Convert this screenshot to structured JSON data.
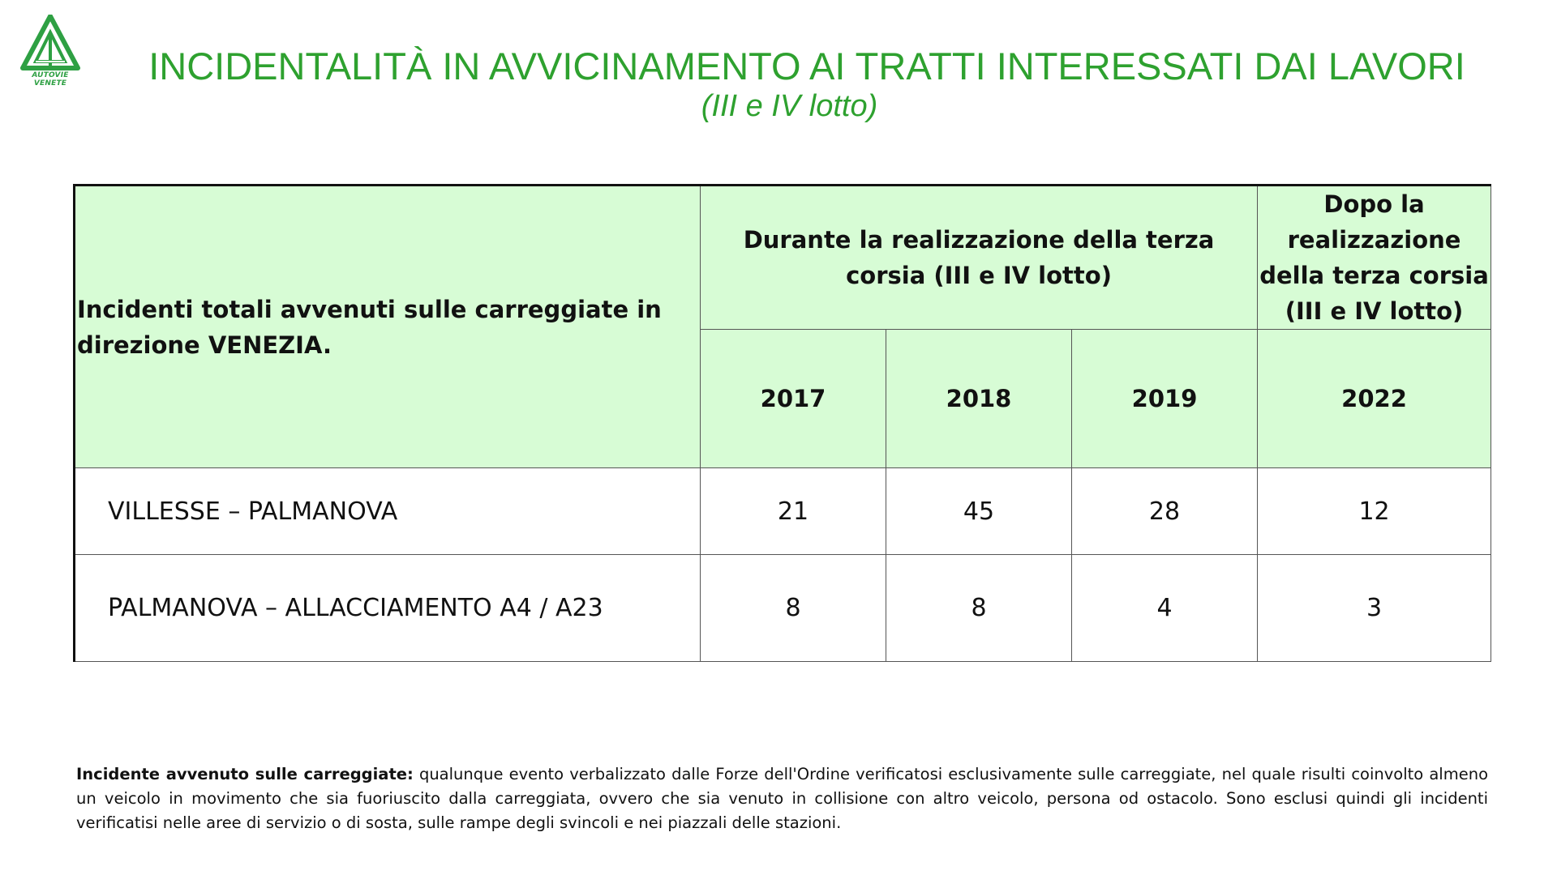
{
  "header": {
    "logo_text": "AUTOVIE VENETE",
    "title": "INCIDENTALITÀ IN AVVICINAMENTO AI TRATTI INTERESSATI DAI LAVORI",
    "subtitle": "(III e IV lotto)"
  },
  "colors": {
    "title_green": "#2ea12f",
    "header_fill": "#d7fcd5"
  },
  "table": {
    "corner_label": "Incidenti totali avvenuti sulle carreggiate in direzione VENEZIA.",
    "group_during": "Durante la realizzazione della terza corsia (III e IV lotto)",
    "group_after": "Dopo la realizzazione della terza corsia (III e IV lotto)",
    "years": [
      "2017",
      "2018",
      "2019",
      "2022"
    ],
    "rows": [
      {
        "label": "VILLESSE – PALMANOVA",
        "values": [
          "21",
          "45",
          "28",
          "12"
        ]
      },
      {
        "label": "PALMANOVA – ALLACCIAMENTO A4 / A23",
        "values": [
          "8",
          "8",
          "4",
          "3"
        ]
      }
    ]
  },
  "note": {
    "term": "Incidente avvenuto sulle carreggiate:",
    "text": " qualunque evento verbalizzato dalle Forze dell'Ordine verificatosi esclusivamente sulle carreggiate, nel quale risulti coinvolto almeno un veicolo in movimento che sia fuoriuscito dalla carreggiata, ovvero che sia venuto in collisione con altro veicolo, persona od ostacolo. Sono esclusi quindi gli incidenti verificatisi nelle aree di servizio o di sosta, sulle rampe degli svincoli e nei piazzali delle stazioni."
  }
}
